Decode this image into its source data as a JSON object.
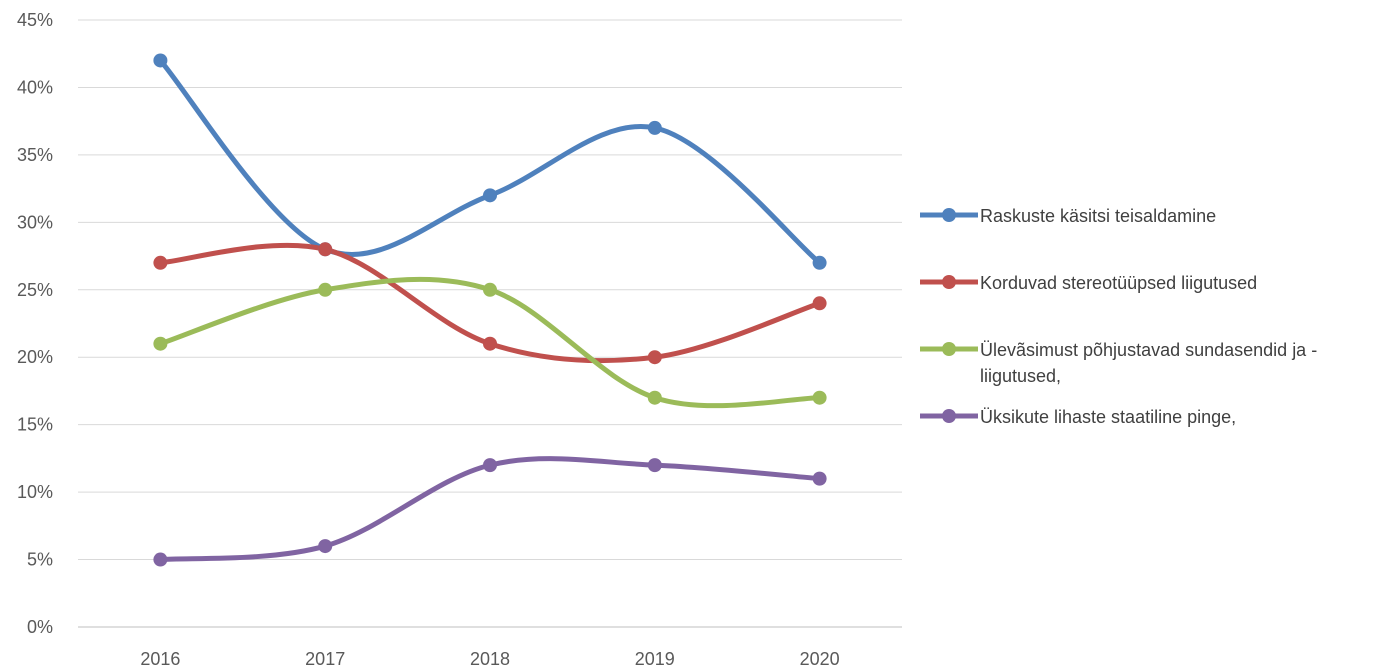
{
  "chart_data": {
    "type": "line",
    "title": "",
    "xlabel": "",
    "ylabel": "",
    "categories": [
      "2016",
      "2017",
      "2018",
      "2019",
      "2020"
    ],
    "ylim": [
      0,
      45
    ],
    "yticks": [
      0,
      5,
      10,
      15,
      20,
      25,
      30,
      35,
      40,
      45
    ],
    "ytick_labels": [
      "0%",
      "5%",
      "10%",
      "15%",
      "20%",
      "25%",
      "30%",
      "35%",
      "40%",
      "45%"
    ],
    "grid": "horizontal",
    "smooth": true,
    "legend_position": "right",
    "series": [
      {
        "name": "Raskuste käsitsi teisaldamine",
        "color": "#4F81BD",
        "values": [
          42,
          28,
          32,
          37,
          27
        ]
      },
      {
        "name": "Korduvad stereotüüpsed liigutused",
        "color": "#C0504D",
        "values": [
          27,
          28,
          21,
          20,
          24
        ]
      },
      {
        "name": "Ülevãsimust põhjustavad sundasendid ja -liigutused,",
        "color": "#9BBB59",
        "values": [
          21,
          25,
          25,
          17,
          17
        ]
      },
      {
        "name": "Üksikute lihaste staatiline pinge,",
        "color": "#8064A2",
        "values": [
          5,
          6,
          12,
          12,
          11
        ]
      }
    ]
  }
}
